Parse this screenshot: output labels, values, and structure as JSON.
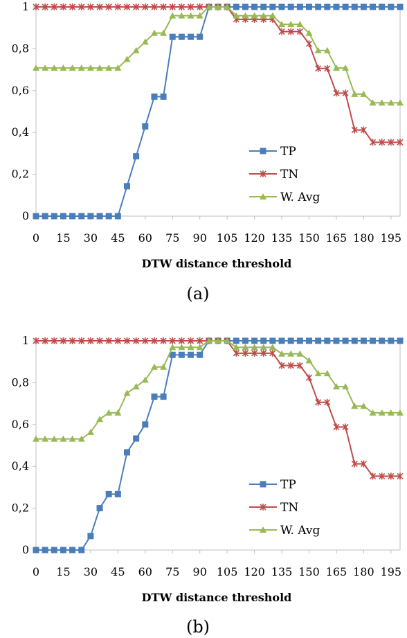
{
  "charts": [
    {
      "caption": "(a)",
      "chart_data": {
        "type": "line",
        "xlabel": "DTW distance threshold",
        "ylabel": "",
        "x": [
          0,
          5,
          10,
          15,
          20,
          25,
          30,
          35,
          40,
          45,
          50,
          55,
          60,
          65,
          70,
          75,
          80,
          85,
          90,
          95,
          100,
          105,
          110,
          115,
          120,
          125,
          130,
          135,
          140,
          145,
          150,
          155,
          160,
          165,
          170,
          175,
          180,
          185,
          190,
          195,
          200
        ],
        "x_ticks": [
          "0",
          "15",
          "30",
          "45",
          "60",
          "75",
          "90",
          "105",
          "120",
          "135",
          "150",
          "165",
          "180",
          "195"
        ],
        "y_ticks": [
          "0",
          "0,2",
          "0,4",
          "0,6",
          "0,8",
          "1"
        ],
        "ylim": [
          0,
          1
        ],
        "xlim": [
          0,
          200
        ],
        "legend_position": "center-right",
        "series": [
          {
            "name": "TP",
            "color": "#4a7ebb",
            "marker": "square",
            "values": [
              0,
              0,
              0,
              0,
              0,
              0,
              0,
              0,
              0,
              0,
              0.143,
              0.286,
              0.429,
              0.571,
              0.571,
              0.857,
              0.857,
              0.857,
              0.857,
              1,
              1,
              1,
              1,
              1,
              1,
              1,
              1,
              1,
              1,
              1,
              1,
              1,
              1,
              1,
              1,
              1,
              1,
              1,
              1,
              1,
              1
            ]
          },
          {
            "name": "TN",
            "color": "#be4b48",
            "marker": "star",
            "values": [
              1,
              1,
              1,
              1,
              1,
              1,
              1,
              1,
              1,
              1,
              1,
              1,
              1,
              1,
              1,
              1,
              1,
              1,
              1,
              1,
              1,
              1,
              0.941,
              0.941,
              0.941,
              0.941,
              0.941,
              0.882,
              0.882,
              0.882,
              0.824,
              0.706,
              0.706,
              0.588,
              0.588,
              0.412,
              0.412,
              0.353,
              0.353,
              0.353,
              0.353
            ]
          },
          {
            "name": "W. Avg",
            "color": "#98b954",
            "marker": "triangle",
            "values": [
              0.708,
              0.708,
              0.708,
              0.708,
              0.708,
              0.708,
              0.708,
              0.708,
              0.708,
              0.708,
              0.75,
              0.792,
              0.833,
              0.875,
              0.875,
              0.958,
              0.958,
              0.958,
              0.958,
              1,
              1,
              1,
              0.958,
              0.958,
              0.958,
              0.958,
              0.958,
              0.917,
              0.917,
              0.917,
              0.875,
              0.792,
              0.792,
              0.708,
              0.708,
              0.583,
              0.583,
              0.542,
              0.542,
              0.542,
              0.542
            ]
          }
        ]
      }
    },
    {
      "caption": "(b)",
      "chart_data": {
        "type": "line",
        "xlabel": "DTW distance threshold",
        "ylabel": "",
        "x": [
          0,
          5,
          10,
          15,
          20,
          25,
          30,
          35,
          40,
          45,
          50,
          55,
          60,
          65,
          70,
          75,
          80,
          85,
          90,
          95,
          100,
          105,
          110,
          115,
          120,
          125,
          130,
          135,
          140,
          145,
          150,
          155,
          160,
          165,
          170,
          175,
          180,
          185,
          190,
          195,
          200
        ],
        "x_ticks": [
          "0",
          "15",
          "30",
          "45",
          "60",
          "75",
          "90",
          "105",
          "120",
          "135",
          "150",
          "165",
          "180",
          "195"
        ],
        "y_ticks": [
          "0",
          "0,2",
          "0,4",
          "0,6",
          "0,8",
          "1"
        ],
        "ylim": [
          0,
          1
        ],
        "xlim": [
          0,
          200
        ],
        "legend_position": "center-right",
        "series": [
          {
            "name": "TP",
            "color": "#4a7ebb",
            "marker": "square",
            "values": [
              0,
              0,
              0,
              0,
              0,
              0,
              0.067,
              0.2,
              0.267,
              0.267,
              0.467,
              0.533,
              0.6,
              0.733,
              0.733,
              0.933,
              0.933,
              0.933,
              0.933,
              1,
              1,
              1,
              1,
              1,
              1,
              1,
              1,
              1,
              1,
              1,
              1,
              1,
              1,
              1,
              1,
              1,
              1,
              1,
              1,
              1,
              1
            ]
          },
          {
            "name": "TN",
            "color": "#be4b48",
            "marker": "star",
            "values": [
              1,
              1,
              1,
              1,
              1,
              1,
              1,
              1,
              1,
              1,
              1,
              1,
              1,
              1,
              1,
              1,
              1,
              1,
              1,
              1,
              1,
              1,
              0.941,
              0.941,
              0.941,
              0.941,
              0.941,
              0.882,
              0.882,
              0.882,
              0.824,
              0.706,
              0.706,
              0.588,
              0.588,
              0.412,
              0.412,
              0.353,
              0.353,
              0.353,
              0.353
            ]
          },
          {
            "name": "W. Avg",
            "color": "#98b954",
            "marker": "triangle",
            "values": [
              0.531,
              0.531,
              0.531,
              0.531,
              0.531,
              0.531,
              0.563,
              0.625,
              0.656,
              0.656,
              0.75,
              0.781,
              0.813,
              0.875,
              0.875,
              0.969,
              0.969,
              0.969,
              0.969,
              1,
              1,
              1,
              0.969,
              0.969,
              0.969,
              0.969,
              0.969,
              0.938,
              0.938,
              0.938,
              0.906,
              0.844,
              0.844,
              0.781,
              0.781,
              0.688,
              0.688,
              0.656,
              0.656,
              0.656,
              0.656
            ]
          }
        ]
      }
    }
  ]
}
